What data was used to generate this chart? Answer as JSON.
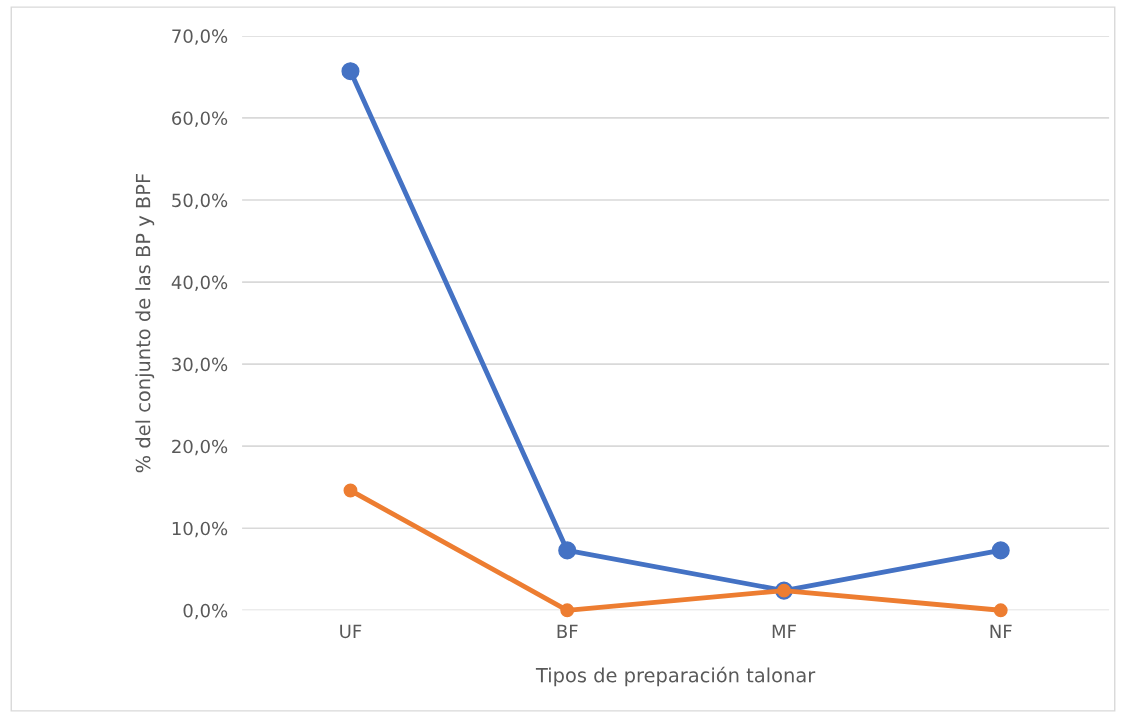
{
  "chart_data": {
    "type": "line",
    "xlabel": "Tipos de preparación talonar",
    "ylabel": "% del conjunto de las BP y BPF",
    "categories": [
      "UF",
      "BF",
      "MF",
      "NF"
    ],
    "series": [
      {
        "color": "#4472c4",
        "values": [
          65.7,
          7.3,
          2.4,
          7.3
        ]
      },
      {
        "color": "#ed7d31",
        "values": [
          14.6,
          0,
          2.4,
          0
        ]
      }
    ],
    "ylim": [
      0,
      70
    ],
    "yticks": [
      {
        "value": 0,
        "label": "0,0%"
      },
      {
        "value": 10,
        "label": "10,0%"
      },
      {
        "value": 20,
        "label": "20,0%"
      },
      {
        "value": 30,
        "label": "30,0%"
      },
      {
        "value": 40,
        "label": "40,0%"
      },
      {
        "value": 50,
        "label": "50,0%"
      },
      {
        "value": 60,
        "label": "60,0%"
      },
      {
        "value": 70,
        "label": "70,0%"
      }
    ],
    "grid": "y",
    "marker": "circle",
    "line_style": "solid"
  }
}
